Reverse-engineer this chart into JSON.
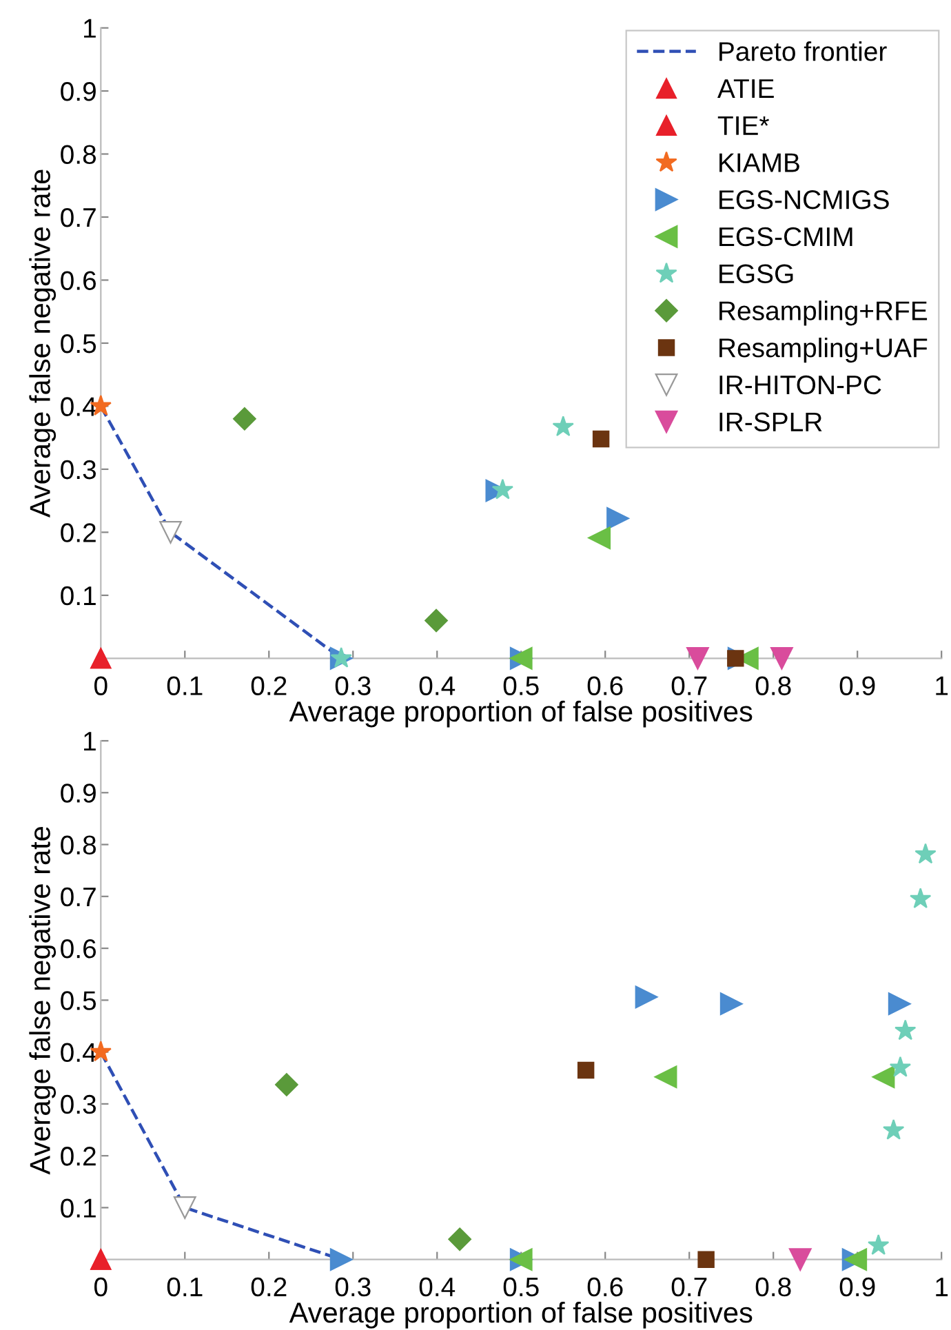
{
  "chart_data": [
    {
      "type": "scatter",
      "xlabel": "Average proportion of false positives",
      "ylabel": "Average false negative rate",
      "xlim": [
        0,
        1
      ],
      "ylim": [
        0,
        1
      ],
      "xticks": [
        0,
        0.1,
        0.2,
        0.3,
        0.4,
        0.5,
        0.6,
        0.7,
        0.8,
        0.9,
        1
      ],
      "yticks": [
        0.1,
        0.2,
        0.3,
        0.4,
        0.5,
        0.6,
        0.7,
        0.8,
        0.9,
        1
      ],
      "grid": false,
      "legend": "top right",
      "series": [
        {
          "name": "Pareto frontier",
          "type": "line",
          "line_style": "dashed",
          "marker": "none",
          "color": "#2f4fb5",
          "x": [
            0,
            0.083,
            0.286
          ],
          "values": [
            0.4,
            0.2,
            0
          ]
        },
        {
          "name": "ATIE",
          "marker": "triangle-up",
          "color": "#e8202a",
          "x": [
            0
          ],
          "values": [
            0
          ]
        },
        {
          "name": "TIE*",
          "marker": "triangle-up",
          "color": "#e8202a",
          "x": [
            0
          ],
          "values": [
            0
          ]
        },
        {
          "name": "KIAMB",
          "marker": "star",
          "color": "#f26b21",
          "x": [
            0
          ],
          "values": [
            0.4
          ]
        },
        {
          "name": "EGS-NCMIGS",
          "marker": "triangle-right",
          "color": "#4a8bd0",
          "x": [
            0.471,
            0.615,
            0.286,
            0.5,
            0.759
          ],
          "values": [
            0.266,
            0.222,
            0,
            0,
            0
          ]
        },
        {
          "name": "EGS-CMIM",
          "marker": "triangle-left",
          "color": "#6abf45",
          "x": [
            0.593,
            0.5,
            0.769
          ],
          "values": [
            0.191,
            0,
            0
          ]
        },
        {
          "name": "EGSG",
          "marker": "star",
          "color": "#6ecfb8",
          "x": [
            0.55,
            0.478,
            0.286
          ],
          "values": [
            0.367,
            0.267,
            0
          ]
        },
        {
          "name": "Resampling+RFE",
          "marker": "diamond",
          "color": "#5a9a3a",
          "x": [
            0.171,
            0.399
          ],
          "values": [
            0.38,
            0.06
          ]
        },
        {
          "name": "Resampling+UAF",
          "marker": "square",
          "color": "#6b3410",
          "x": [
            0.595,
            0.755
          ],
          "values": [
            0.348,
            0
          ]
        },
        {
          "name": "IR-HITON-PC",
          "marker": "triangle-down",
          "color": "#ffffff",
          "x": [
            0.083
          ],
          "values": [
            0.2
          ]
        },
        {
          "name": "IR-SPLR",
          "marker": "triangle-down",
          "color": "#d94c9c",
          "x": [
            0.71,
            0.81
          ],
          "values": [
            0,
            0
          ]
        }
      ]
    },
    {
      "type": "scatter",
      "xlabel": "Average proportion of false positives",
      "ylabel": "Average false negative rate",
      "xlim": [
        0,
        1
      ],
      "ylim": [
        0,
        1
      ],
      "xticks": [
        0,
        0.1,
        0.2,
        0.3,
        0.4,
        0.5,
        0.6,
        0.7,
        0.8,
        0.9,
        1
      ],
      "yticks": [
        0.1,
        0.2,
        0.3,
        0.4,
        0.5,
        0.6,
        0.7,
        0.8,
        0.9,
        1
      ],
      "grid": false,
      "legend": false,
      "series": [
        {
          "type": "line",
          "line_style": "dashed",
          "marker": "none",
          "color": "#2f4fb5",
          "x": [
            0,
            0.1,
            0.286
          ],
          "values": [
            0.4,
            0.1,
            0
          ]
        },
        {
          "marker": "triangle-up",
          "color": "#e8202a",
          "x": [
            0
          ],
          "values": [
            0
          ]
        },
        {
          "marker": "triangle-up",
          "color": "#e8202a",
          "x": [
            0
          ],
          "values": [
            0
          ]
        },
        {
          "marker": "star",
          "color": "#f26b21",
          "x": [
            0
          ],
          "values": [
            0.4
          ]
        },
        {
          "marker": "triangle-right",
          "color": "#4a8bd0",
          "x": [
            0.649,
            0.75,
            0.95,
            0.286,
            0.5,
            0.895
          ],
          "values": [
            0.506,
            0.493,
            0.493,
            0,
            0,
            0
          ]
        },
        {
          "marker": "triangle-left",
          "color": "#6abf45",
          "x": [
            0.672,
            0.931,
            0.5,
            0.898
          ],
          "values": [
            0.352,
            0.352,
            0,
            0
          ]
        },
        {
          "marker": "star",
          "color": "#6ecfb8",
          "x": [
            0.981,
            0.975,
            0.957,
            0.951,
            0.943,
            0.925
          ],
          "values": [
            0.781,
            0.695,
            0.441,
            0.37,
            0.249,
            0.027
          ]
        },
        {
          "marker": "diamond",
          "color": "#5a9a3a",
          "x": [
            0.221,
            0.427
          ],
          "values": [
            0.337,
            0.039
          ]
        },
        {
          "marker": "square",
          "color": "#6b3410",
          "x": [
            0.577,
            0.72
          ],
          "values": [
            0.365,
            0
          ]
        },
        {
          "marker": "triangle-down",
          "color": "#ffffff",
          "x": [
            0.1
          ],
          "values": [
            0.1
          ]
        },
        {
          "marker": "triangle-down",
          "color": "#d94c9c",
          "x": [
            0.832
          ],
          "values": [
            0
          ]
        }
      ]
    }
  ]
}
